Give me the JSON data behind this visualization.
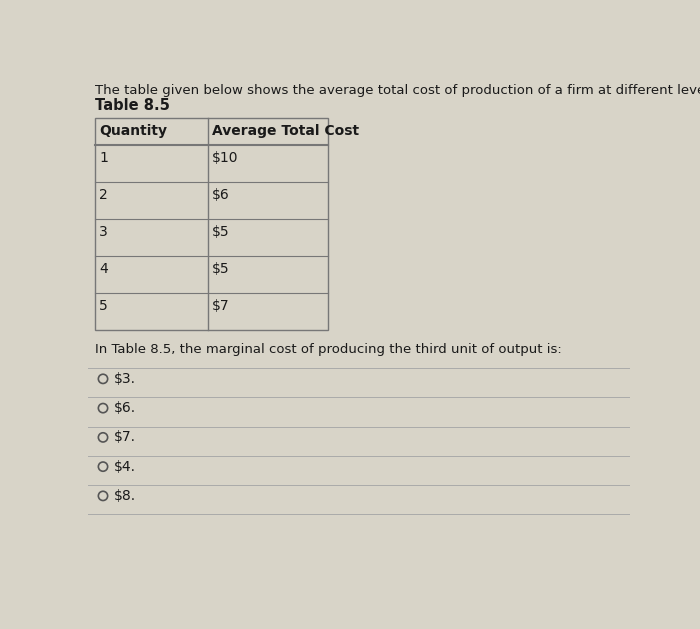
{
  "background_color": "#d8d4c8",
  "intro_text": "The table given below shows the average total cost of production of a firm at different levels of the output.",
  "table_title": "Table 8.5",
  "col_headers": [
    "Quantity",
    "Average Total Cost"
  ],
  "table_data": [
    [
      "1",
      "$10"
    ],
    [
      "2",
      "$6"
    ],
    [
      "3",
      "$5"
    ],
    [
      "4",
      "$5"
    ],
    [
      "5",
      "$7"
    ]
  ],
  "question_text": "In Table 8.5, the marginal cost of producing the third unit of output is:",
  "options": [
    "$3.",
    "$6.",
    "$7.",
    "$4.",
    "$8."
  ],
  "intro_fontsize": 9.5,
  "table_title_fontsize": 10.5,
  "header_fontsize": 10.0,
  "cell_fontsize": 10.0,
  "question_fontsize": 9.5,
  "option_fontsize": 10.0,
  "text_color": "#1a1a1a",
  "table_border_color": "#777777",
  "line_color": "#aaaaaa",
  "circle_color": "#555555"
}
